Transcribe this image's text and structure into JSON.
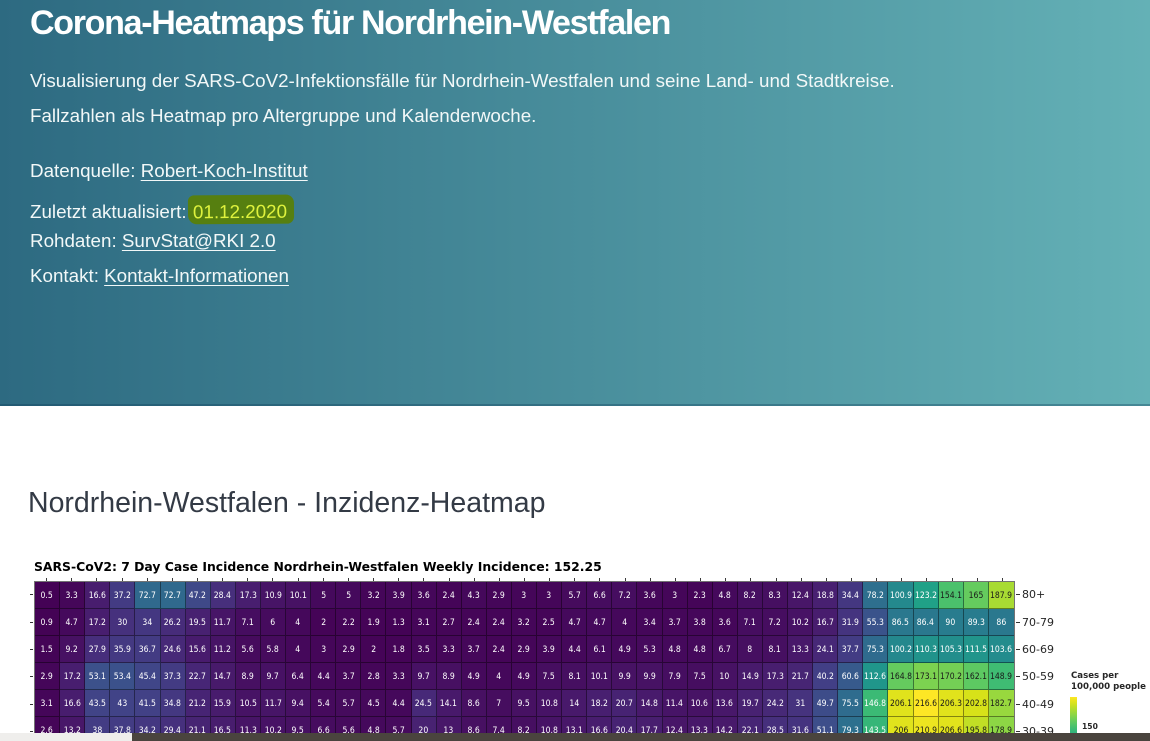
{
  "header": {
    "title": "Corona-Heatmaps für Nordrhein-Westfalen",
    "subtitle_line1": "Visualisierung der SARS-CoV2-Infektionsfälle für Nordrhein-Westfalen und seine Land- und Stadtkreise.",
    "subtitle_line2": "Fallzahlen als Heatmap pro Altergruppe und Kalenderwoche.",
    "gradient_left": "#2d6a81",
    "gradient_right": "#64b1b6",
    "meta": [
      {
        "label": "Datenquelle: ",
        "link": "Robert-Koch-Institut"
      },
      {
        "label": "Zuletzt aktualisiert: ",
        "highlight": "01.12.2020"
      },
      {
        "label": "Rohdaten: ",
        "link": "SurvStat@RKI 2.0"
      },
      {
        "label": "Kontakt: ",
        "link": "Kontakt-Informationen"
      }
    ],
    "highlight_bg": "#567f10",
    "highlight_color": "#dff23d"
  },
  "section": {
    "heading": "Nordrhein-Westfalen - Inzidenz-Heatmap"
  },
  "chart_data": {
    "type": "heatmap",
    "title": "SARS-CoV2: 7 Day Case Incidence Nordrhein-Westfalen Weekly Incidence: 152.25",
    "weekly_incidence": "152.25",
    "ylabel_side": "right",
    "rows": [
      "80+",
      "70-79",
      "60-69",
      "50-59",
      "40-49",
      "30-39"
    ],
    "values": [
      [
        "0.5",
        "3.3",
        "16.6",
        "37.2",
        "72.7",
        "72.7",
        "47.2",
        "28.4",
        "17.3",
        "10.9",
        "10.1",
        "5",
        "5",
        "3.2",
        "3.9",
        "3.6",
        "2.4",
        "4.3",
        "2.9",
        "3",
        "3",
        "5.7",
        "6.6",
        "7.2",
        "3.6",
        "3",
        "2.3",
        "4.8",
        "8.2",
        "8.3",
        "12.4",
        "18.8",
        "34.4",
        "78.2",
        "100.9",
        "123.2",
        "154.1",
        "165",
        "187.9"
      ],
      [
        "0.9",
        "4.7",
        "17.2",
        "30",
        "34",
        "26.2",
        "19.5",
        "11.7",
        "7.1",
        "6",
        "4",
        "2",
        "2.2",
        "1.9",
        "1.3",
        "3.1",
        "2.7",
        "2.4",
        "2.4",
        "3.2",
        "2.5",
        "4.7",
        "4.7",
        "4",
        "3.4",
        "3.7",
        "3.8",
        "3.6",
        "7.1",
        "7.2",
        "10.2",
        "16.7",
        "31.9",
        "55.3",
        "86.5",
        "86.4",
        "90",
        "89.3",
        "86"
      ],
      [
        "1.5",
        "9.2",
        "27.9",
        "35.9",
        "36.7",
        "24.6",
        "15.6",
        "11.2",
        "5.6",
        "5.8",
        "4",
        "3",
        "2.9",
        "2",
        "1.8",
        "3.5",
        "3.3",
        "3.7",
        "2.4",
        "2.9",
        "3.9",
        "4.4",
        "6.1",
        "4.9",
        "5.3",
        "4.8",
        "4.8",
        "6.7",
        "8",
        "8.1",
        "13.3",
        "24.1",
        "37.7",
        "75.3",
        "100.2",
        "110.3",
        "105.3",
        "111.5",
        "103.6"
      ],
      [
        "2.9",
        "17.2",
        "53.1",
        "53.4",
        "45.4",
        "37.3",
        "22.7",
        "14.7",
        "8.9",
        "9.7",
        "6.4",
        "4.4",
        "3.7",
        "2.8",
        "3.3",
        "9.7",
        "8.9",
        "4.9",
        "4",
        "4.9",
        "7.5",
        "8.1",
        "10.1",
        "9.9",
        "9.9",
        "7.9",
        "7.5",
        "10",
        "14.9",
        "17.3",
        "21.7",
        "40.2",
        "60.6",
        "112.6",
        "164.8",
        "173.1",
        "170.2",
        "162.1",
        "148.9"
      ],
      [
        "3.1",
        "16.6",
        "43.5",
        "43",
        "41.5",
        "34.8",
        "21.2",
        "15.9",
        "10.5",
        "11.7",
        "9.4",
        "5.4",
        "5.7",
        "4.5",
        "4.4",
        "24.5",
        "14.1",
        "8.6",
        "7",
        "9.5",
        "10.8",
        "14",
        "18.2",
        "20.7",
        "14.8",
        "11.4",
        "10.6",
        "13.6",
        "19.7",
        "24.2",
        "31",
        "49.7",
        "75.5",
        "146.8",
        "206.1",
        "216.6",
        "206.3",
        "202.8",
        "182.7"
      ],
      [
        "2.6",
        "13.2",
        "38",
        "37.8",
        "34.2",
        "29.4",
        "21.1",
        "16.5",
        "11.3",
        "10.2",
        "9.5",
        "6.6",
        "5.6",
        "4.8",
        "5.7",
        "20",
        "13",
        "8.6",
        "7.4",
        "8.2",
        "10.8",
        "13.1",
        "16.6",
        "20.4",
        "17.7",
        "12.4",
        "13.3",
        "14.2",
        "22.1",
        "28.5",
        "31.6",
        "51.1",
        "79.3",
        "143.5",
        "206",
        "210.9",
        "206.6",
        "195.8",
        "178.9"
      ]
    ],
    "colormap": "viridis",
    "viridis_anchors": [
      "#440154",
      "#48186a",
      "#472d7b",
      "#424086",
      "#3b528b",
      "#33638d",
      "#2c728e",
      "#26828e",
      "#21918c",
      "#1fa088",
      "#28ae80",
      "#3fbc73",
      "#5ec962",
      "#84d44b",
      "#addc30",
      "#d8e219",
      "#fde725"
    ],
    "vmin": 0,
    "vmax": 216.6,
    "text_dark_threshold": 147.8,
    "cell_text_light": "#ffffff",
    "cell_text_dark": "#1a1a1a",
    "legend": {
      "label_line1": "Cases per",
      "label_line2": "100,000 people",
      "tick": "150",
      "bar_top_value": 216.6,
      "bar_value_at_cut": 139.3
    }
  }
}
